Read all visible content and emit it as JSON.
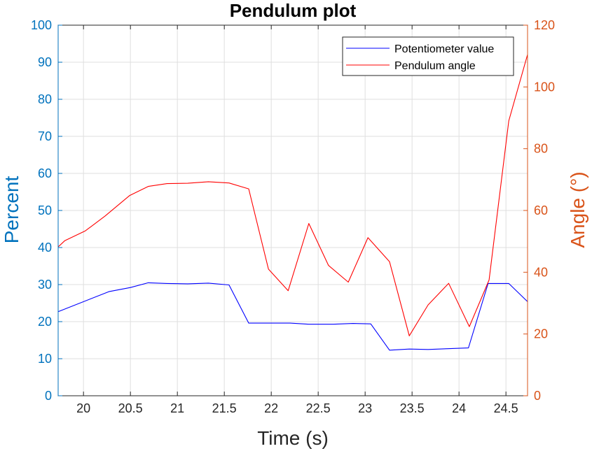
{
  "chart_data": {
    "type": "line",
    "title": "Pendulum plot",
    "xlabel": "Time (s)",
    "ylabel_left": "Percent",
    "ylabel_right": "Angle (°)",
    "xlim": [
      19.73,
      24.73
    ],
    "ylim_left": [
      0,
      100
    ],
    "ylim_right": [
      0,
      120
    ],
    "x_ticks": [
      "20",
      "20.5",
      "21",
      "21.5",
      "22",
      "22.5",
      "23",
      "23.5",
      "24",
      "24.5"
    ],
    "y_ticks_left": [
      "0",
      "10",
      "20",
      "30",
      "40",
      "50",
      "60",
      "70",
      "80",
      "90",
      "100"
    ],
    "y_ticks_right": [
      "0",
      "20",
      "40",
      "60",
      "80",
      "100",
      "120"
    ],
    "grid": true,
    "legend_position": "top-right",
    "colors": {
      "left_axis": "#0072BD",
      "right_axis": "#D95319",
      "potentiometer_line": "#0000FF",
      "pendulum_line": "#FF0000"
    },
    "series": [
      {
        "name": "Potentiometer value",
        "axis": "left",
        "color": "#0000FF",
        "x": [
          19.73,
          20.27,
          20.5,
          20.69,
          20.89,
          21.11,
          21.33,
          21.55,
          21.76,
          22.0,
          22.2,
          22.4,
          22.66,
          22.87,
          23.06,
          23.26,
          23.47,
          23.67,
          23.88,
          24.1,
          24.31,
          24.53,
          24.73
        ],
        "values": [
          22.7,
          28.1,
          29.2,
          30.5,
          30.3,
          30.2,
          30.4,
          29.9,
          19.6,
          19.6,
          19.6,
          19.3,
          19.3,
          19.5,
          19.4,
          12.3,
          12.6,
          12.5,
          12.7,
          12.9,
          30.3,
          30.3,
          25.4
        ]
      },
      {
        "name": "Pendulum angle",
        "axis": "right",
        "color": "#FF0000",
        "x": [
          19.73,
          19.8,
          20.02,
          20.23,
          20.49,
          20.69,
          20.89,
          21.11,
          21.33,
          21.55,
          21.76,
          21.97,
          22.18,
          22.4,
          22.61,
          22.82,
          23.03,
          23.26,
          23.47,
          23.67,
          23.89,
          24.11,
          24.32,
          24.53,
          24.73
        ],
        "values": [
          48.2,
          50.2,
          53.4,
          58.2,
          64.8,
          67.8,
          68.7,
          68.8,
          69.3,
          68.9,
          67.0,
          41.0,
          34.0,
          55.8,
          42.2,
          36.8,
          51.2,
          43.4,
          19.4,
          29.4,
          36.4,
          22.4,
          37.5,
          89.0,
          110.5
        ]
      }
    ]
  }
}
